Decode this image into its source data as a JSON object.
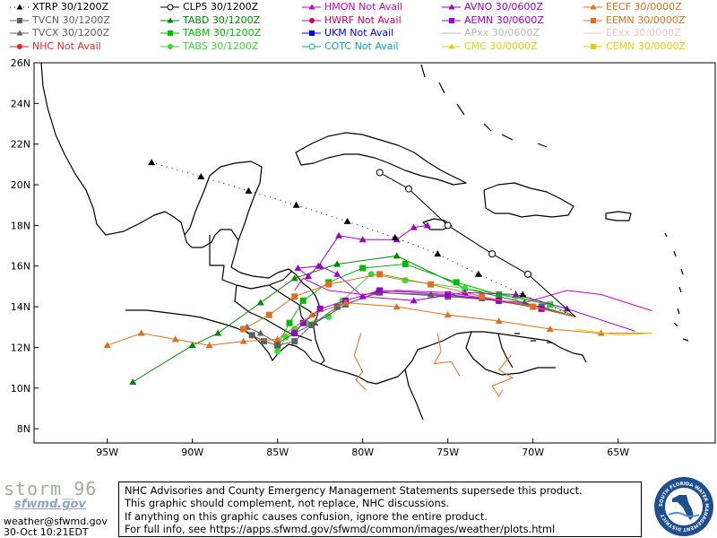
{
  "legend": [
    {
      "model": "XTRP",
      "status": "30/1200Z",
      "color": "#000000",
      "marker": "triangle",
      "dash": "dot"
    },
    {
      "model": "CLP5",
      "status": "30/1200Z",
      "color": "#000000",
      "marker": "circle-open",
      "dash": "solid"
    },
    {
      "model": "HMON",
      "status": "Not Avail",
      "color": "#cc00cc",
      "marker": "triangle",
      "dash": "solid"
    },
    {
      "model": "AVNO",
      "status": "30/0600Z",
      "color": "#9900cc",
      "marker": "triangle",
      "dash": "solid"
    },
    {
      "model": "EECF",
      "status": "30/0000Z",
      "color": "#e07020",
      "marker": "triangle",
      "dash": "solid"
    },
    {
      "model": "TVCN",
      "status": "30/1200Z",
      "color": "#606060",
      "marker": "square",
      "dash": "solid"
    },
    {
      "model": "TABD",
      "status": "30/1200Z",
      "color": "#008800",
      "marker": "triangle",
      "dash": "solid"
    },
    {
      "model": "HWRF",
      "status": "Not Avail",
      "color": "#cc0066",
      "marker": "circle",
      "dash": "solid"
    },
    {
      "model": "AEMN",
      "status": "30/0600Z",
      "color": "#9900cc",
      "marker": "square",
      "dash": "solid"
    },
    {
      "model": "EEMN",
      "status": "30/0000Z",
      "color": "#e07020",
      "marker": "square",
      "dash": "solid"
    },
    {
      "model": "TVCX",
      "status": "30/1200Z",
      "color": "#606060",
      "marker": "triangle",
      "dash": "solid"
    },
    {
      "model": "TABM",
      "status": "30/1200Z",
      "color": "#00bb00",
      "marker": "square",
      "dash": "solid"
    },
    {
      "model": "UKM",
      "status": "Not Avail",
      "color": "#0000ee",
      "marker": "square",
      "dash": "solid"
    },
    {
      "model": "APxx",
      "status": "30/0600Z",
      "color": "#bbbbbb",
      "marker": "none",
      "dash": "solid"
    },
    {
      "model": "EExx",
      "status": "30/0000Z",
      "color": "#f0c8c0",
      "marker": "none",
      "dash": "solid"
    },
    {
      "model": "NHC",
      "status": "Not Avail",
      "color": "#ee2222",
      "marker": "circle",
      "dash": "solid"
    },
    {
      "model": "TABS",
      "status": "30/1200Z",
      "color": "#33dd33",
      "marker": "circle",
      "dash": "solid"
    },
    {
      "model": "COTC",
      "status": "Not Avail",
      "color": "#00aaaa",
      "marker": "circle-open",
      "dash": "solid"
    },
    {
      "model": "CMC",
      "status": "30/0000Z",
      "color": "#eecc00",
      "marker": "triangle",
      "dash": "solid"
    },
    {
      "model": "CEMN",
      "status": "30/0000Z",
      "color": "#eecc00",
      "marker": "square",
      "dash": "solid"
    }
  ],
  "map": {
    "lat_labels": [
      "26N",
      "24N",
      "22N",
      "20N",
      "18N",
      "16N",
      "14N",
      "12N",
      "10N",
      "8N"
    ],
    "lon_labels": [
      "95W",
      "90W",
      "85W",
      "80W",
      "75W",
      "70W",
      "65W"
    ],
    "lat_values": [
      26,
      24,
      22,
      20,
      18,
      16,
      14,
      12,
      10,
      8
    ],
    "lon_values": [
      -95,
      -90,
      -85,
      -80,
      -75,
      -70,
      -65
    ],
    "frame_color": "#000000",
    "land_outline_color": "#000000"
  },
  "tracks": [
    {
      "model": "TABD",
      "color": "#008800",
      "marker": "triangle",
      "points": [
        [
          -67.5,
          13.5
        ],
        [
          -70.5,
          14.2
        ],
        [
          -74,
          14.9
        ],
        [
          -78,
          16.5
        ],
        [
          -81.5,
          16.1
        ],
        [
          -84,
          15.4
        ],
        [
          -86,
          14.2
        ],
        [
          -88.5,
          12.7
        ],
        [
          -90,
          12.1
        ],
        [
          -93.5,
          10.3
        ]
      ]
    },
    {
      "model": "TABM",
      "color": "#00bb00",
      "marker": "square",
      "points": [
        [
          -67.5,
          13.5
        ],
        [
          -69,
          14.1
        ],
        [
          -72,
          14.6
        ],
        [
          -74.5,
          15.2
        ],
        [
          -77.5,
          16.1
        ],
        [
          -80,
          15.9
        ],
        [
          -82,
          15.2
        ],
        [
          -83.5,
          14.3
        ],
        [
          -84.3,
          13.2
        ],
        [
          -85,
          12.1
        ]
      ]
    },
    {
      "model": "TABS",
      "color": "#33dd33",
      "marker": "circle",
      "points": [
        [
          -67.5,
          13.5
        ],
        [
          -69,
          14.1
        ],
        [
          -71,
          14.5
        ],
        [
          -74,
          14.9
        ],
        [
          -77.5,
          15.3
        ],
        [
          -79.5,
          15.6
        ],
        [
          -81.2,
          14.3
        ],
        [
          -82,
          13.5
        ],
        [
          -83.3,
          13.2
        ],
        [
          -84,
          12.9
        ],
        [
          -84.5,
          12.5
        ],
        [
          -85,
          11.8
        ]
      ]
    },
    {
      "model": "TVCN",
      "color": "#606060",
      "marker": "square",
      "points": [
        [
          -67.5,
          13.5
        ],
        [
          -69.5,
          14.0
        ],
        [
          -72,
          14.3
        ],
        [
          -75,
          14.5
        ],
        [
          -79,
          14.7
        ],
        [
          -81.5,
          14.0
        ],
        [
          -83,
          13.1
        ],
        [
          -84,
          12.3
        ],
        [
          -85,
          12.1
        ],
        [
          -85.8,
          12.3
        ],
        [
          -86.5,
          12.6
        ],
        [
          -87,
          12.9
        ]
      ]
    },
    {
      "model": "TVCX",
      "color": "#606060",
      "marker": "triangle",
      "points": [
        [
          -67.5,
          13.5
        ],
        [
          -70,
          14.0
        ],
        [
          -73,
          14.4
        ],
        [
          -76,
          14.6
        ],
        [
          -79.2,
          14.7
        ],
        [
          -81,
          14.1
        ],
        [
          -82.8,
          13.2
        ],
        [
          -84,
          12.7
        ],
        [
          -85,
          12.2
        ],
        [
          -86,
          12.7
        ],
        [
          -86.8,
          13.0
        ]
      ]
    },
    {
      "model": "AVNO",
      "color": "#9900cc",
      "marker": "triangle",
      "points": [
        [
          -64,
          12.8
        ],
        [
          -68,
          13.9
        ],
        [
          -71,
          14.6
        ],
        [
          -74,
          14.7
        ],
        [
          -77,
          14.3
        ],
        [
          -80,
          14.5
        ],
        [
          -81.5,
          15.6
        ],
        [
          -82.5,
          16.0
        ],
        [
          -83.8,
          15.9
        ],
        [
          -83.2,
          15.5
        ],
        [
          -82.6,
          16.0
        ],
        [
          -81.4,
          17.5
        ],
        [
          -80,
          17.3
        ],
        [
          -78,
          17.3
        ],
        [
          -77,
          17.9
        ],
        [
          -76.2,
          18.0
        ]
      ]
    },
    {
      "model": "AEMN",
      "color": "#9900cc",
      "marker": "square",
      "points": [
        [
          -67.5,
          13.5
        ],
        [
          -69.5,
          13.9
        ],
        [
          -72,
          14.3
        ],
        [
          -75,
          14.6
        ],
        [
          -79,
          14.8
        ],
        [
          -81,
          14.3
        ],
        [
          -82.5,
          13.9
        ],
        [
          -83.5,
          13.2
        ],
        [
          -84,
          12.7
        ]
      ]
    },
    {
      "model": "HMON",
      "color": "#cc00cc",
      "marker": "none",
      "points": [
        [
          -63,
          13.8
        ],
        [
          -66,
          14.6
        ],
        [
          -68,
          14.8
        ],
        [
          -70.5,
          14.2
        ],
        [
          -72,
          14.3
        ],
        [
          -75,
          14.7
        ],
        [
          -78,
          14.8
        ],
        [
          -80,
          14.6
        ],
        [
          -82,
          14.8
        ],
        [
          -83.5,
          15.4
        ],
        [
          -84,
          14.8
        ]
      ]
    },
    {
      "model": "EECF",
      "color": "#e07020",
      "marker": "triangle",
      "points": [
        [
          -63,
          12.7
        ],
        [
          -66,
          12.7
        ],
        [
          -69,
          12.9
        ],
        [
          -72,
          13.3
        ],
        [
          -75,
          13.6
        ],
        [
          -78,
          14.0
        ],
        [
          -81,
          14.2
        ],
        [
          -83,
          13.6
        ],
        [
          -85,
          12.4
        ],
        [
          -87,
          12.3
        ],
        [
          -89,
          12.1
        ],
        [
          -91,
          12.4
        ],
        [
          -93,
          12.7
        ],
        [
          -95,
          12.1
        ]
      ]
    },
    {
      "model": "EEMN",
      "color": "#e07020",
      "marker": "square",
      "points": [
        [
          -67.5,
          13.5
        ],
        [
          -70,
          14.0
        ],
        [
          -73,
          14.5
        ],
        [
          -76,
          15.1
        ],
        [
          -79,
          15.6
        ],
        [
          -82,
          15.1
        ],
        [
          -84,
          14.5
        ],
        [
          -85.5,
          13.6
        ],
        [
          -87,
          12.9
        ]
      ]
    },
    {
      "model": "EEMN-2",
      "color": "#e07020",
      "marker": "none",
      "points": [
        [
          -80.1,
          12.7
        ],
        [
          -80.5,
          11.6
        ],
        [
          -80.0,
          10.8
        ],
        [
          -80.4,
          10.4
        ],
        [
          -79.8,
          9.9
        ]
      ]
    },
    {
      "model": "EEMN-3",
      "color": "#e07020",
      "marker": "none",
      "points": [
        [
          -75.6,
          12.7
        ],
        [
          -75.4,
          11.8
        ],
        [
          -75.8,
          11.2
        ],
        [
          -74.8,
          11.3
        ],
        [
          -74.3,
          10.6
        ]
      ]
    },
    {
      "model": "EEMN-4",
      "color": "#e07020",
      "marker": "none",
      "points": [
        [
          -71.3,
          11.6
        ],
        [
          -72,
          10.9
        ],
        [
          -71.2,
          10.5
        ],
        [
          -72.4,
          10.1
        ],
        [
          -72,
          9.6
        ],
        [
          -71.8,
          9.9
        ]
      ]
    },
    {
      "model": "CMC",
      "color": "#eecc00",
      "marker": "none",
      "points": [
        [
          -63,
          12.7
        ],
        [
          -65,
          12.6
        ],
        [
          -67.5,
          12.9
        ]
      ]
    },
    {
      "model": "CLP5",
      "color": "#000000",
      "marker": "circle-open",
      "points": [
        [
          -67.5,
          13.5
        ],
        [
          -70.3,
          15.6
        ],
        [
          -72.4,
          16.6
        ],
        [
          -75,
          18.0
        ],
        [
          -77.3,
          19.8
        ],
        [
          -79,
          20.6
        ]
      ]
    },
    {
      "model": "XTRP",
      "color": "#000000",
      "marker": "triangle",
      "dash": "dot",
      "points": [
        [
          -67.5,
          13.5
        ],
        [
          -70.6,
          14.6
        ],
        [
          -73.2,
          15.6
        ],
        [
          -75.6,
          16.6
        ],
        [
          -78.1,
          17.4
        ],
        [
          -80.9,
          18.2
        ],
        [
          -83.9,
          19.0
        ],
        [
          -86.7,
          19.7
        ],
        [
          -89.5,
          20.4
        ],
        [
          -92.4,
          21.1
        ]
      ]
    }
  ],
  "footer": {
    "brand_name": "storm_96",
    "brand_sub": "sfwmd.gov",
    "email": "weather@sfwmd.gov",
    "timestamp": "30-Oct 10:21EDT",
    "disclaimer": [
      "NHC Advisories and County Emergency Management Statements supersede this product.",
      "This graphic should complement, not replace, NHC discussions.",
      "If anything on this graphic causes confusion, ignore the entire product.",
      "For full info, see  https://apps.sfwmd.gov/sfwmd/common/images/weather/plots.html"
    ],
    "seal_text": "SOUTH FLORIDA WATER MANAGEMENT DISTRICT"
  }
}
